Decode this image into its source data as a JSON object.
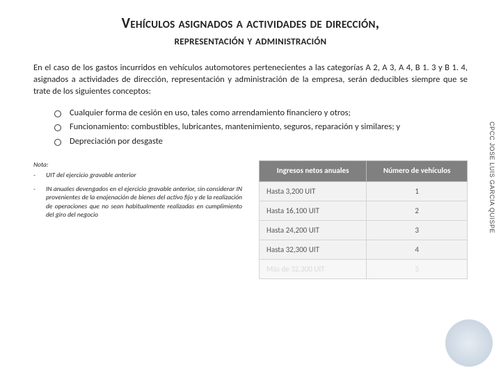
{
  "title": {
    "line1": "Vehículos asignados a actividades de dirección,",
    "line2": "representación y administración"
  },
  "intro": "En el caso de los gastos incurridos en vehículos automotores pertenecientes a las categorías A 2, A 3, A 4, B 1. 3 y B 1. 4, asignados a actividades de dirección, representación y administración de la empresa, serán deducibles siempre que se trate de los siguientes conceptos:",
  "bullets": [
    "Cualquier forma de cesión en uso, tales como arrendamiento financiero y otros;",
    "Funcionamiento: combustibles, lubricantes, mantenimiento, seguros, reparación y similares; y",
    "Depreciación por desgaste"
  ],
  "notes": {
    "heading": "Nota:",
    "items": [
      "UIT del ejercicio gravable anterior",
      "IN anuales devengados en el ejercicio gravable anterior, sin considerar IN provenientes de la enajenación de bienes del activo fijo y de la realización de operaciones que no sean habitualmente realizadas en cumplimiento del giro del negocio"
    ]
  },
  "table": {
    "col1_header": "Ingresos netos anuales",
    "col2_header": "Número de vehículos",
    "rows": [
      {
        "ingresos": "Hasta 3,200 UIT",
        "num": "1",
        "fade": false
      },
      {
        "ingresos": "Hasta 16,100 UIT",
        "num": "2",
        "fade": false
      },
      {
        "ingresos": "Hasta 24,200 UIT",
        "num": "3",
        "fade": false
      },
      {
        "ingresos": "Hasta 32,300 UIT",
        "num": "4",
        "fade": false
      },
      {
        "ingresos": "Más de 32,300 UIT",
        "num": "5",
        "fade": true
      }
    ]
  },
  "side_label": "CPCC JOSE LUIS GARCIA QUISPE",
  "colors": {
    "th_bg": "#808080",
    "th_fg": "#ffffff",
    "td_bg": "#f2f2f2",
    "td_fg": "#555555",
    "border": "#d4d4d4"
  }
}
